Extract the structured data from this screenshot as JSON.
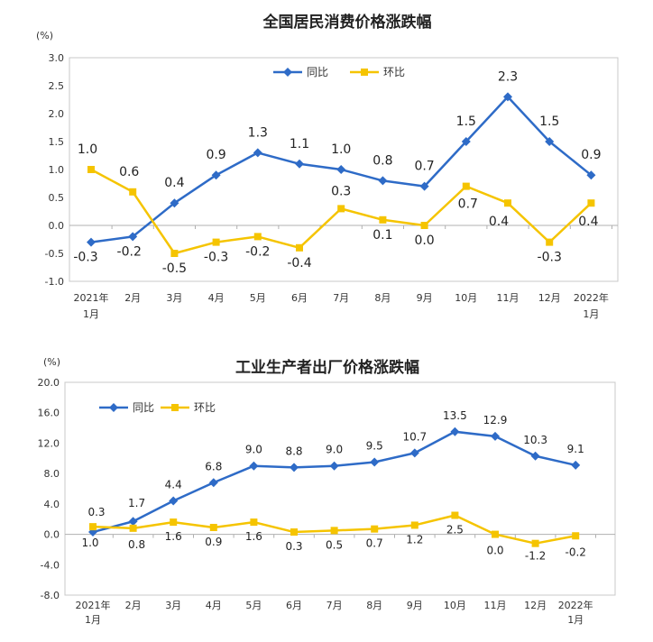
{
  "chart_data": [
    {
      "type": "line",
      "title": "全国居民消费价格涨跌幅",
      "unit_label": "(%)",
      "ylim": [
        -1.0,
        3.0
      ],
      "yticks": [
        "3.0",
        "2.5",
        "2.0",
        "1.5",
        "1.0",
        "0.5",
        "0.0",
        "-0.5",
        "-1.0"
      ],
      "categories": [
        "2021年1月",
        "2月",
        "3月",
        "4月",
        "5月",
        "6月",
        "7月",
        "8月",
        "9月",
        "10月",
        "11月",
        "12月",
        "2022年1月"
      ],
      "category_lines": [
        [
          "2021年",
          "1月"
        ],
        [
          "2月"
        ],
        [
          "3月"
        ],
        [
          "4月"
        ],
        [
          "5月"
        ],
        [
          "6月"
        ],
        [
          "7月"
        ],
        [
          "8月"
        ],
        [
          "9月"
        ],
        [
          "10月"
        ],
        [
          "11月"
        ],
        [
          "12月"
        ],
        [
          "2022年",
          "1月"
        ]
      ],
      "legend_position": "top-center",
      "grid": false,
      "series": [
        {
          "name": "同比",
          "color": "#2e6bc7",
          "values": [
            -0.3,
            -0.2,
            0.4,
            0.9,
            1.3,
            1.1,
            1.0,
            0.8,
            0.7,
            1.5,
            2.3,
            1.5,
            0.9
          ],
          "labels": [
            "-0.3",
            "-0.2",
            "0.4",
            "0.9",
            "1.3",
            "1.1",
            "1.0",
            "0.8",
            "0.7",
            "1.5",
            "2.3",
            "1.5",
            "0.9"
          ]
        },
        {
          "name": "环比",
          "color": "#f5c400",
          "values": [
            1.0,
            0.6,
            -0.5,
            -0.3,
            -0.2,
            -0.4,
            0.3,
            0.1,
            0.0,
            0.7,
            0.4,
            -0.3,
            0.4
          ],
          "labels": [
            "1.0",
            "0.6",
            "-0.5",
            "-0.3",
            "-0.2",
            "-0.4",
            "0.3",
            "0.1",
            "0.0",
            "0.7",
            "0.4",
            "-0.3",
            "0.4"
          ]
        }
      ]
    },
    {
      "type": "line",
      "title": "工业生产者出厂价格涨跌幅",
      "unit_label": "(%)",
      "ylim": [
        -8.0,
        20.0
      ],
      "yticks": [
        "20.0",
        "16.0",
        "12.0",
        "8.0",
        "4.0",
        "0.0",
        "-4.0",
        "-8.0"
      ],
      "categories": [
        "2021年1月",
        "2月",
        "3月",
        "4月",
        "5月",
        "6月",
        "7月",
        "8月",
        "9月",
        "10月",
        "11月",
        "12月",
        "2022年1月"
      ],
      "category_lines": [
        [
          "2021年",
          "1月"
        ],
        [
          "2月"
        ],
        [
          "3月"
        ],
        [
          "4月"
        ],
        [
          "5月"
        ],
        [
          "6月"
        ],
        [
          "7月"
        ],
        [
          "8月"
        ],
        [
          "9月"
        ],
        [
          "10月"
        ],
        [
          "11月"
        ],
        [
          "12月"
        ],
        [
          "2022年",
          "1月"
        ]
      ],
      "legend_position": "top-left",
      "grid": false,
      "series": [
        {
          "name": "同比",
          "color": "#2e6bc7",
          "values": [
            0.3,
            1.7,
            4.4,
            6.8,
            9.0,
            8.8,
            9.0,
            9.5,
            10.7,
            13.5,
            12.9,
            10.3,
            9.1
          ],
          "labels": [
            "0.3",
            "1.7",
            "4.4",
            "6.8",
            "9.0",
            "8.8",
            "9.0",
            "9.5",
            "10.7",
            "13.5",
            "12.9",
            "10.3",
            "9.1"
          ]
        },
        {
          "name": "环比",
          "color": "#f5c400",
          "values": [
            1.0,
            0.8,
            1.6,
            0.9,
            1.6,
            0.3,
            0.5,
            0.7,
            1.2,
            2.5,
            0.0,
            -1.2,
            -0.2
          ],
          "labels": [
            "1.0",
            "0.8",
            "1.6",
            "0.9",
            "1.6",
            "0.3",
            "0.5",
            "0.7",
            "1.2",
            "2.5",
            "0.0",
            "-1.2",
            "-0.2"
          ]
        }
      ]
    }
  ]
}
